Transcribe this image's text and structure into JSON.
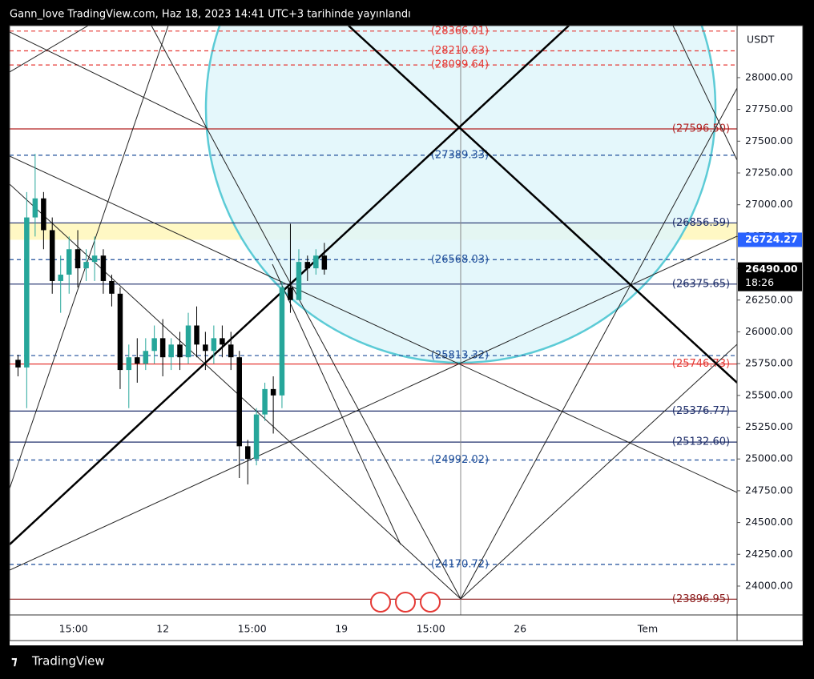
{
  "header": {
    "title": "Gann_love TradingView.com, Haz 18, 2023 14:41 UTC+3 tarihinde yayınlandı"
  },
  "chart_data": {
    "type": "candlestick",
    "x": [
      6.33,
      6.67,
      7,
      7.33,
      7.67,
      8,
      8.33,
      8.67,
      9,
      9.33,
      9.67,
      10,
      10.33,
      10.67,
      11,
      11.33,
      11.67,
      12,
      12.33,
      12.67,
      13,
      13.33,
      13.67,
      14,
      14.33,
      14.67,
      15,
      15.33,
      15.67,
      16,
      16.33,
      16.67,
      17,
      17.33,
      17.67,
      18,
      18.33
    ],
    "open": [
      25780,
      25720,
      26900,
      27050,
      26800,
      26400,
      26450,
      26650,
      26500,
      26550,
      26600,
      26400,
      26300,
      25700,
      25800,
      25750,
      25850,
      25950,
      25800,
      25900,
      25800,
      26050,
      25900,
      25850,
      25950,
      25900,
      25800,
      25100,
      25000,
      25350,
      25550,
      25500,
      26350,
      26250,
      26550,
      26500,
      26600
    ],
    "high": [
      25820,
      27100,
      27400,
      27100,
      26900,
      26600,
      26750,
      26800,
      26650,
      26750,
      26650,
      26450,
      26350,
      25900,
      25950,
      25950,
      26050,
      26100,
      25950,
      26000,
      26150,
      26200,
      26000,
      26050,
      26050,
      26000,
      25850,
      25150,
      25400,
      25600,
      25650,
      26400,
      26850,
      26650,
      26600,
      26650,
      26700
    ],
    "low": [
      25650,
      25400,
      26750,
      26650,
      26300,
      26150,
      26300,
      26350,
      26400,
      26400,
      26300,
      26200,
      25550,
      25400,
      25600,
      25700,
      25750,
      25650,
      25700,
      25700,
      25750,
      25800,
      25700,
      25750,
      25800,
      25700,
      24850,
      24800,
      24950,
      25300,
      25200,
      25400,
      26150,
      26250,
      26400,
      26450,
      26450
    ],
    "close": [
      25720,
      26900,
      27050,
      26800,
      26400,
      26450,
      26650,
      26500,
      26550,
      26600,
      26400,
      26300,
      25700,
      25800,
      25750,
      25850,
      25950,
      25800,
      25900,
      25800,
      26050,
      25900,
      25850,
      25950,
      25900,
      25800,
      25100,
      25000,
      25350,
      25550,
      25500,
      26350,
      26250,
      26550,
      26500,
      26600,
      26490
    ],
    "up_color": "#26a69a",
    "down_color": "#000000",
    "xlim": [
      6,
      34.5
    ],
    "xticks": [
      {
        "value": 8.5,
        "label": "15:00"
      },
      12,
      {
        "value": 15.5,
        "label": "15:00"
      },
      19,
      {
        "value": 22.5,
        "label": "15:00"
      },
      26,
      {
        "value": 31,
        "label": "Tem"
      }
    ],
    "ylim": [
      23773,
      28409
    ],
    "yticks": [
      {
        "value": 24000,
        "label": "24000.00"
      },
      {
        "value": 24250,
        "label": "24250.00"
      },
      {
        "value": 24500,
        "label": "24500.00"
      },
      {
        "value": 24750,
        "label": "24750.00"
      },
      {
        "value": 25000,
        "label": "25000.00"
      },
      {
        "value": 25250,
        "label": "25250.00"
      },
      {
        "value": 25500,
        "label": "25500.00"
      },
      {
        "value": 25750,
        "label": "25750.00"
      },
      {
        "value": 26000,
        "label": "26000.00"
      },
      {
        "value": 26250,
        "label": "26250.00"
      },
      {
        "value": 26500,
        "label": "26500.00"
      },
      {
        "value": 26750,
        "label": "26750.00"
      },
      {
        "value": 27000,
        "label": "27000.00"
      },
      {
        "value": 27250,
        "label": "27250.00"
      },
      {
        "value": 27500,
        "label": "27500.00"
      },
      {
        "value": 27750,
        "label": "27750.00"
      },
      {
        "value": 28000,
        "label": "28000.00"
      }
    ],
    "y_unit": "USDT",
    "grid": true,
    "zone": {
      "top": 26856.59,
      "bottom": 26724.27,
      "color": "#fff8c4"
    },
    "levels": [
      {
        "value": 28366.01,
        "label": "(28366.01)",
        "color": "#e53935",
        "style": "dashed",
        "label_pos": "center"
      },
      {
        "value": 28210.63,
        "label": "(28210.63)",
        "color": "#e53935",
        "style": "dashed",
        "label_pos": "center"
      },
      {
        "value": 28099.64,
        "label": "(28099.64)",
        "color": "#e53935",
        "style": "dashed",
        "label_pos": "center"
      },
      {
        "value": 27596.5,
        "label": "(27596.50)",
        "color": "#b22222",
        "style": "solid",
        "label_pos": "right"
      },
      {
        "value": 27389.33,
        "label": "(27389.33)",
        "color": "#1e4e9a",
        "style": "dashed",
        "label_pos": "center"
      },
      {
        "value": 26856.59,
        "label": "(26856.59)",
        "color": "#1f2f6b",
        "style": "solid",
        "label_pos": "right"
      },
      {
        "value": 26568.03,
        "label": "(26568.03)",
        "color": "#1e4e9a",
        "style": "dashed",
        "label_pos": "center"
      },
      {
        "value": 26375.65,
        "label": "(26375.65)",
        "color": "#1f2f6b",
        "style": "solid",
        "label_pos": "right"
      },
      {
        "value": 25813.32,
        "label": "(25813.32)",
        "color": "#1e4e9a",
        "style": "dashed",
        "label_pos": "center"
      },
      {
        "value": 25746.73,
        "label": "(25746.73)",
        "color": "#e53935",
        "style": "solid",
        "label_pos": "right"
      },
      {
        "value": 25376.77,
        "label": "(25376.77)",
        "color": "#1f2f6b",
        "style": "solid",
        "label_pos": "right"
      },
      {
        "value": 25132.6,
        "label": "(25132.60)",
        "color": "#1f2f6b",
        "style": "solid",
        "label_pos": "right"
      },
      {
        "value": 24992.02,
        "label": "(24992.02)",
        "color": "#1e4e9a",
        "style": "dashed",
        "label_pos": "center"
      },
      {
        "value": 24170.72,
        "label": "(24170.72)",
        "color": "#1e4e9a",
        "style": "dashed",
        "label_pos": "center"
      },
      {
        "value": 23896.95,
        "label": "(23896.95)",
        "color": "#8b1a1a",
        "style": "solid",
        "label_pos": "right"
      }
    ],
    "badges": [
      {
        "price": 26724.27,
        "color": "#2962ff"
      },
      {
        "price": {
          "value": 26490,
          "label": "26490.00"
        },
        "countdown": "18:26",
        "color": "#000000"
      }
    ]
  },
  "footer": {
    "brand": "TradingView"
  }
}
